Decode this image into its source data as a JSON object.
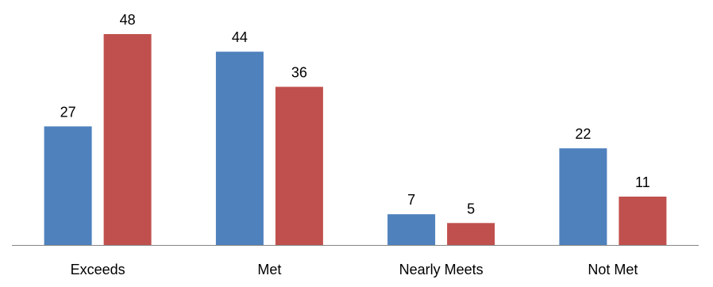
{
  "chart_data": {
    "type": "bar",
    "categories": [
      "Exceeds",
      "Met",
      "Nearly Meets",
      "Not Met"
    ],
    "series": [
      {
        "values": [
          27,
          44,
          7,
          22
        ],
        "color": "#4f81bd"
      },
      {
        "values": [
          48,
          36,
          5,
          11
        ],
        "color": "#c0504d"
      }
    ],
    "ylim": [
      0,
      48
    ],
    "grid": false,
    "legend": "none",
    "data_labels": true
  }
}
